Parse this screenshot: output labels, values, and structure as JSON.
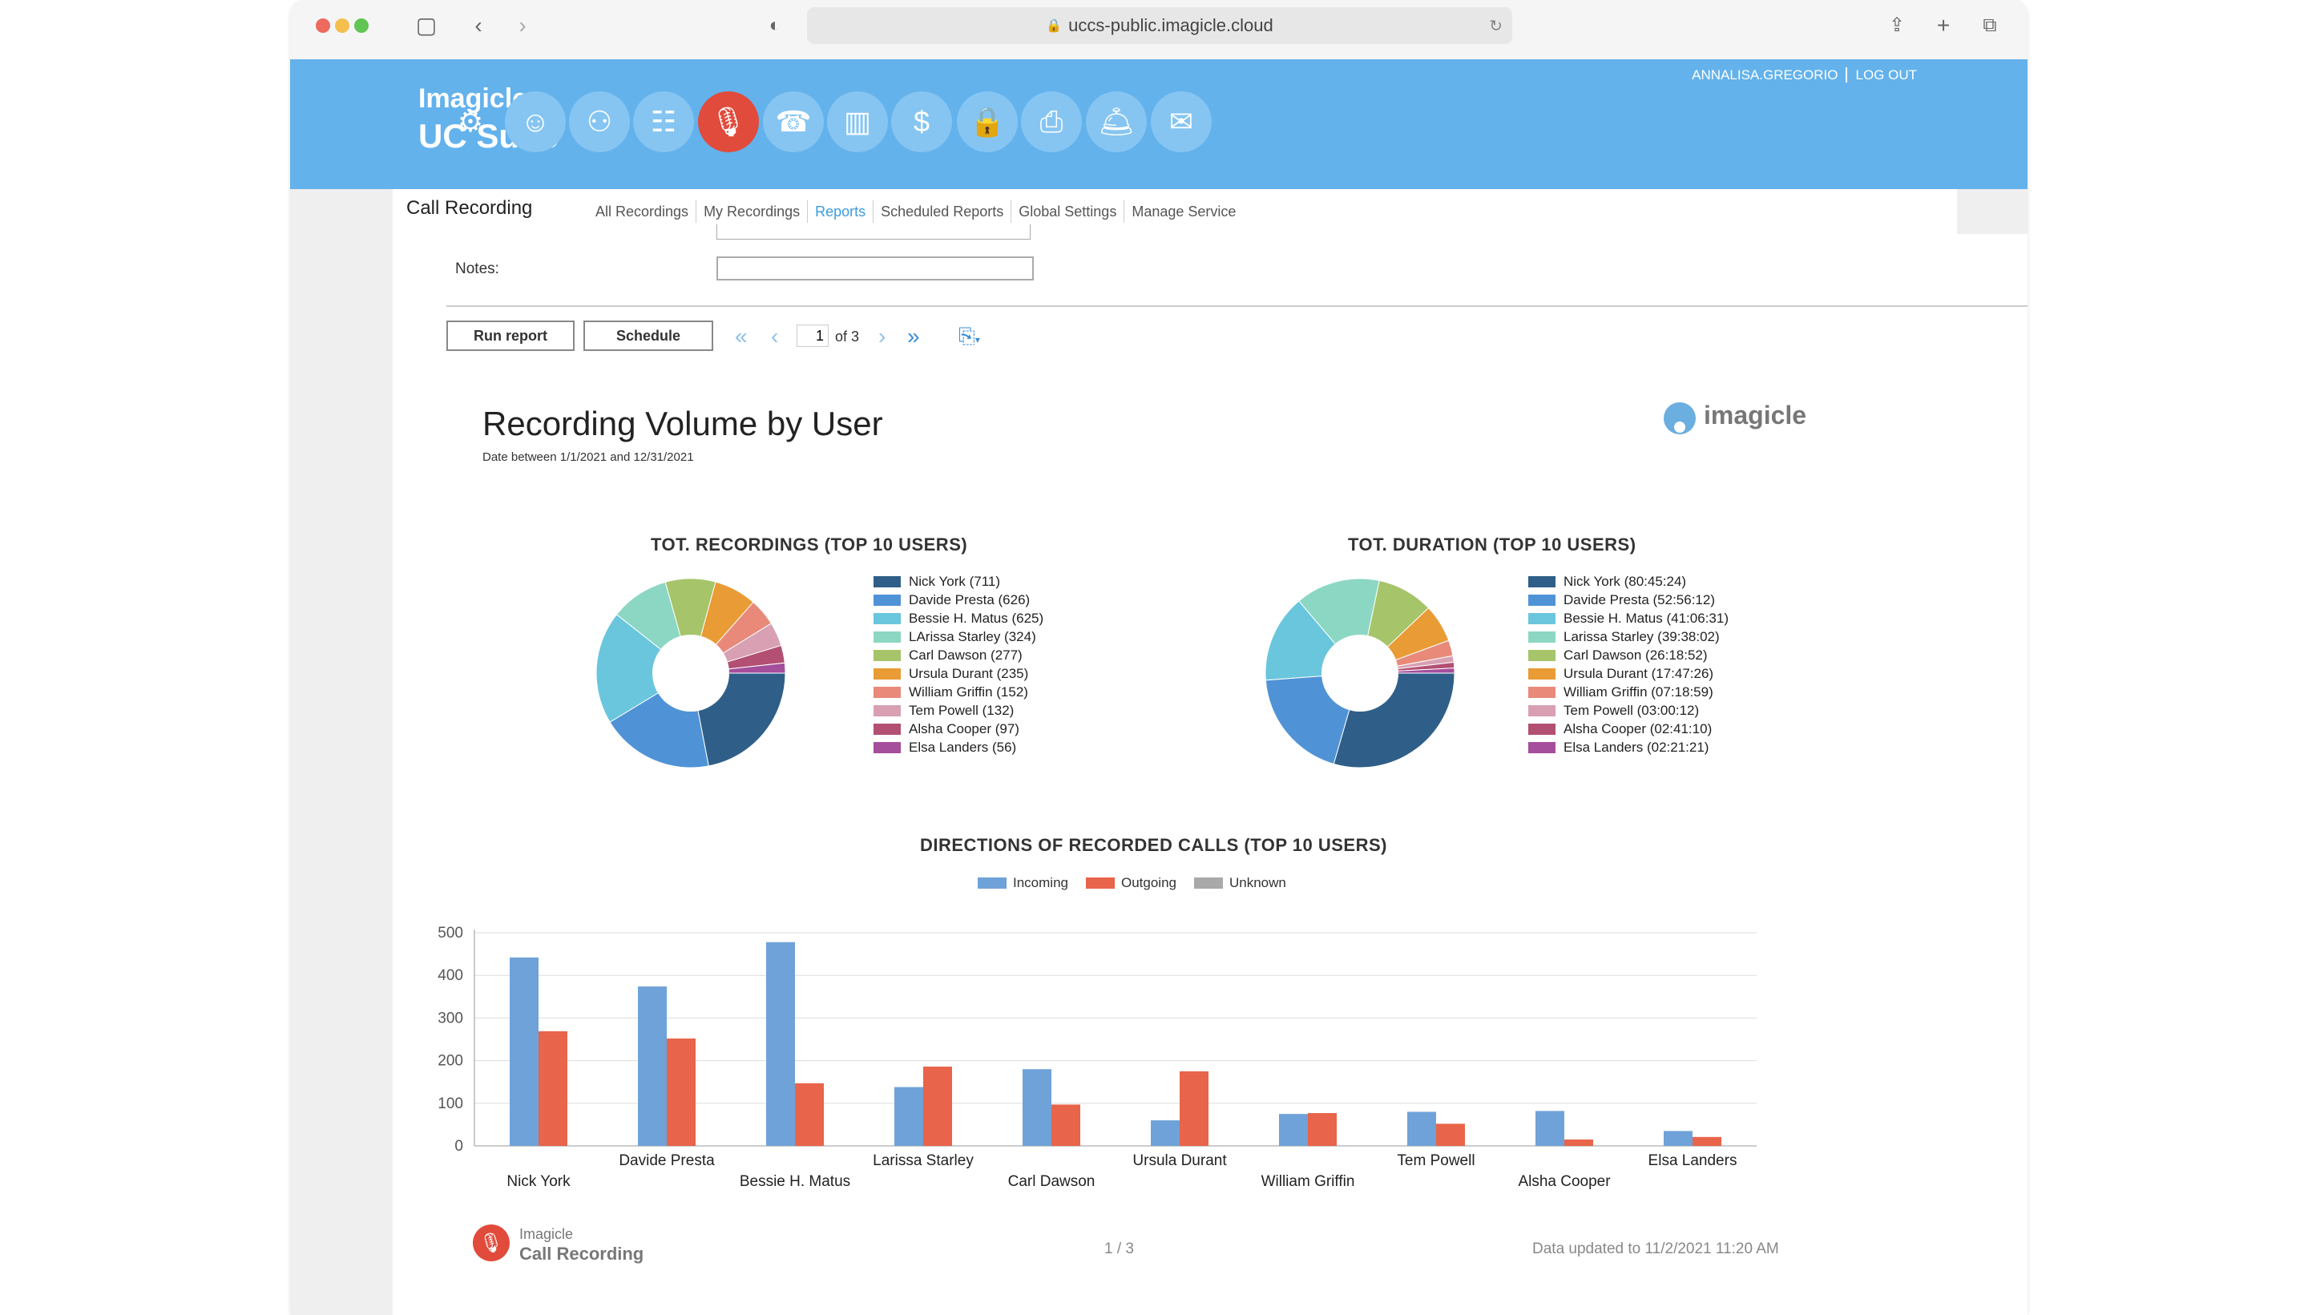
{
  "browser": {
    "url": "uccs-public.imagicle.cloud",
    "icons": [
      "sidebar-icon",
      "back-icon",
      "forward-icon",
      "shield-icon",
      "reload-icon",
      "share-icon",
      "new-tab-icon",
      "tabs-icon"
    ]
  },
  "header": {
    "brand_line1": "Imagicle",
    "brand_line2": "UC Suite",
    "username": "ANNALISA.GREGORIO",
    "logout": "LOG OUT",
    "apps": [
      {
        "icon": "gear-icon",
        "glyph": "⚙"
      },
      {
        "icon": "attendant-icon",
        "glyph": "☺"
      },
      {
        "icon": "contact-center-icon",
        "glyph": "⚇"
      },
      {
        "icon": "directory-icon",
        "glyph": "☷"
      },
      {
        "icon": "call-recording-icon",
        "glyph": "🎙",
        "active": true
      },
      {
        "icon": "contacts-icon",
        "glyph": "☎"
      },
      {
        "icon": "analytics-icon",
        "glyph": "▥"
      },
      {
        "icon": "billing-icon",
        "glyph": "$"
      },
      {
        "icon": "lock-icon",
        "glyph": "🔒"
      },
      {
        "icon": "fax-icon",
        "glyph": "⎙"
      },
      {
        "icon": "hotel-bell-icon",
        "glyph": "🛎"
      },
      {
        "icon": "mail-icon",
        "glyph": "✉"
      }
    ]
  },
  "nav": {
    "section_title": "Call Recording",
    "tabs": [
      "All Recordings",
      "My Recordings",
      "Reports",
      "Scheduled Reports",
      "Global Settings",
      "Manage Service"
    ],
    "active_tab": "Reports"
  },
  "form": {
    "notes_label": "Notes:",
    "notes_value": "",
    "run_button": "Run report",
    "schedule_button": "Schedule",
    "page_current": "1",
    "page_of": "of 3"
  },
  "report": {
    "title": "Recording Volume by User",
    "subtitle": "Date between 1/1/2021 and 12/31/2021",
    "logo_text": "imagicle",
    "footer_brand_line1": "Imagicle",
    "footer_brand_line2": "Call Recording",
    "footer_page": "1 / 3",
    "footer_updated": "Data updated to 11/2/2021 11:20 AM"
  },
  "colors": {
    "header_bg": "#63b2ec",
    "accent_red": "#e14b3b",
    "incoming": "#6fa2d8",
    "outgoing": "#e8644a",
    "unknown": "#a9a9a9"
  },
  "chart_data": [
    {
      "type": "pie",
      "title": "TOT. RECORDINGS (TOP 10 USERS)",
      "legend": [
        "Nick York (711)",
        "Davide Presta (626)",
        "Bessie H. Matus (625)",
        "LArissa Starley (324)",
        "Carl Dawson (277)",
        "Ursula Durant (235)",
        "William Griffin (152)",
        "Tem Powell (132)",
        "Alsha Cooper (97)",
        "Elsa Landers (56)"
      ],
      "values": [
        711,
        626,
        625,
        324,
        277,
        235,
        152,
        132,
        97,
        56
      ],
      "colors": [
        "#2f5f88",
        "#4f93d6",
        "#69c6dd",
        "#8cd7c3",
        "#a6c469",
        "#e99b35",
        "#e8897a",
        "#d8a0b2",
        "#b34f73",
        "#a44e9c"
      ]
    },
    {
      "type": "pie",
      "title": "TOT. DURATION (TOP 10 USERS)",
      "legend": [
        "Nick York (80:45:24)",
        "Davide Presta (52:56:12)",
        "Bessie H. Matus (41:06:31)",
        "Larissa Starley (39:38:02)",
        "Carl Dawson (26:18:52)",
        "Ursula Durant (17:47:26)",
        "William Griffin (07:18:59)",
        "Tem Powell (03:00:12)",
        "Alsha Cooper (02:41:10)",
        "Elsa Landers (02:21:21)"
      ],
      "values": [
        80.76,
        52.94,
        41.11,
        39.63,
        26.31,
        17.79,
        7.32,
        3.0,
        2.69,
        2.36
      ],
      "colors": [
        "#2f5f88",
        "#4f93d6",
        "#69c6dd",
        "#8cd7c3",
        "#a6c469",
        "#e99b35",
        "#e8897a",
        "#d8a0b2",
        "#b34f73",
        "#a44e9c"
      ]
    },
    {
      "type": "bar",
      "title": "DIRECTIONS OF RECORDED CALLS (TOP 10 USERS)",
      "categories": [
        "Nick York",
        "Davide Presta",
        "Bessie H. Matus",
        "Larissa Starley",
        "Carl Dawson",
        "Ursula Durant",
        "William Griffin",
        "Tem Powell",
        "Alsha Cooper",
        "Elsa Landers"
      ],
      "series": [
        {
          "name": "Incoming",
          "values": [
            442,
            374,
            478,
            138,
            180,
            60,
            75,
            80,
            82,
            35
          ]
        },
        {
          "name": "Outgoing",
          "values": [
            269,
            252,
            147,
            186,
            97,
            175,
            77,
            52,
            15,
            21
          ]
        },
        {
          "name": "Unknown",
          "values": [
            0,
            0,
            0,
            0,
            0,
            0,
            0,
            0,
            0,
            0
          ]
        }
      ],
      "yticks": [
        "0",
        "100",
        "200",
        "300",
        "400",
        "500"
      ],
      "ylim": [
        0,
        500
      ]
    }
  ]
}
